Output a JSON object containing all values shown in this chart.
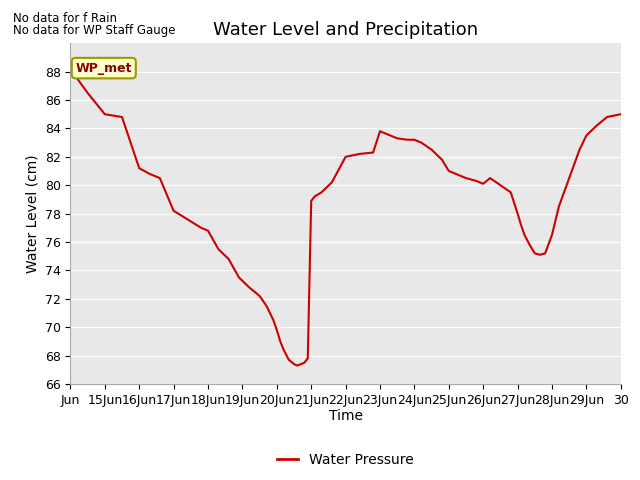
{
  "title": "Water Level and Precipitation",
  "xlabel": "Time",
  "ylabel": "Water Level (cm)",
  "annotation_lines": [
    "No data for f Rain",
    "No data for WP Staff Gauge"
  ],
  "legend_label": "WP_met",
  "legend_box_label": "Water Pressure",
  "ylim": [
    66,
    90
  ],
  "xlim": [
    14,
    30
  ],
  "yticks": [
    66,
    68,
    70,
    72,
    74,
    76,
    78,
    80,
    82,
    84,
    86,
    88
  ],
  "line_color": "#cc0000",
  "background_color": "#e8e8e8",
  "x_data": [
    14.0,
    14.2,
    14.5,
    15.0,
    15.5,
    16.0,
    16.3,
    16.6,
    17.0,
    17.4,
    17.8,
    18.0,
    18.3,
    18.6,
    18.9,
    19.2,
    19.5,
    19.7,
    19.9,
    20.0,
    20.1,
    20.2,
    20.35,
    20.5,
    20.6,
    20.7,
    20.8,
    20.9,
    21.0,
    21.1,
    21.3,
    21.6,
    22.0,
    22.4,
    22.8,
    23.0,
    23.3,
    23.5,
    23.8,
    24.0,
    24.2,
    24.5,
    24.8,
    25.0,
    25.2,
    25.5,
    25.8,
    26.0,
    26.2,
    26.5,
    26.8,
    27.0,
    27.1,
    27.2,
    27.35,
    27.5,
    27.65,
    27.8,
    28.0,
    28.2,
    28.5,
    28.8,
    29.0,
    29.3,
    29.6,
    30.0
  ],
  "y_data": [
    88.2,
    87.5,
    86.5,
    85.0,
    84.8,
    81.2,
    80.8,
    80.5,
    78.2,
    77.6,
    77.0,
    76.8,
    75.5,
    74.8,
    73.5,
    72.8,
    72.2,
    71.5,
    70.5,
    69.8,
    69.0,
    68.4,
    67.7,
    67.4,
    67.3,
    67.4,
    67.5,
    67.8,
    78.9,
    79.2,
    79.5,
    80.2,
    82.0,
    82.2,
    82.3,
    83.8,
    83.5,
    83.3,
    83.2,
    83.2,
    83.0,
    82.5,
    81.8,
    81.0,
    80.8,
    80.5,
    80.3,
    80.1,
    80.5,
    80.0,
    79.5,
    78.0,
    77.2,
    76.5,
    75.8,
    75.2,
    75.1,
    75.2,
    76.5,
    78.5,
    80.5,
    82.5,
    83.5,
    84.2,
    84.8,
    85.0
  ],
  "xtick_positions": [
    14,
    15,
    16,
    17,
    18,
    19,
    20,
    21,
    22,
    23,
    24,
    25,
    26,
    27,
    28,
    29,
    30
  ],
  "xtick_labels": [
    "Jun",
    "15Jun",
    "16Jun",
    "17Jun",
    "18Jun",
    "19Jun",
    "20Jun",
    "21Jun",
    "22Jun",
    "23Jun",
    "24Jun",
    "25Jun",
    "26Jun",
    "27Jun",
    "28Jun",
    "29Jun",
    "30"
  ],
  "title_fontsize": 13,
  "label_fontsize": 9,
  "axis_label_fontsize": 10
}
